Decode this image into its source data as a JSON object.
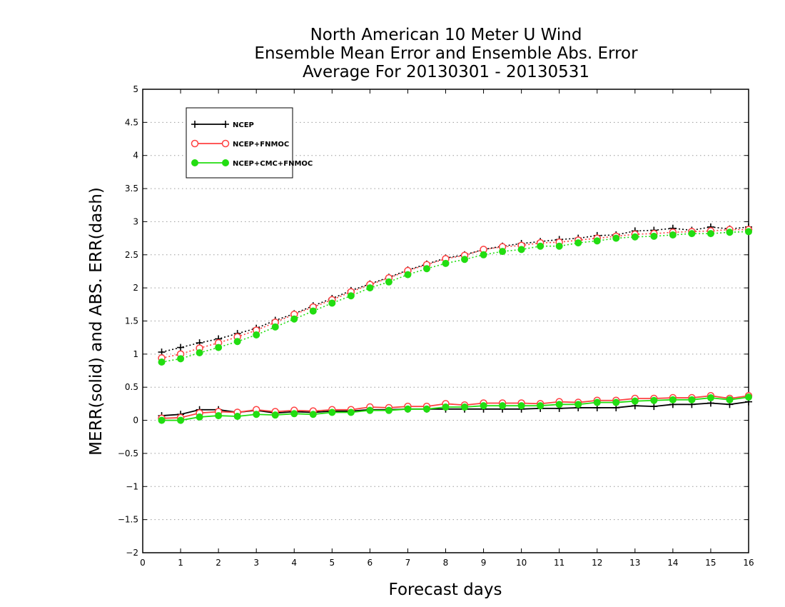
{
  "chart_data": {
    "type": "line",
    "title_lines": [
      "North American 10 Meter U Wind",
      "Ensemble Mean Error and Ensemble Abs. Error",
      "Average For 20130301 - 20130531"
    ],
    "xlabel": "Forecast days",
    "ylabel": "MERR(solid) and ABS. ERR(dash)",
    "xlim": [
      0,
      16
    ],
    "ylim": [
      -2,
      5
    ],
    "xticks": [
      0,
      1,
      2,
      3,
      4,
      5,
      6,
      7,
      8,
      9,
      10,
      11,
      12,
      13,
      14,
      15,
      16
    ],
    "yticks": [
      -2,
      -1.5,
      -1,
      -0.5,
      0,
      0.5,
      1,
      1.5,
      2,
      2.5,
      3,
      3.5,
      4,
      4.5,
      5
    ],
    "grid": "horizontal dotted",
    "legend_placement": "top-left",
    "x": [
      0.5,
      1,
      1.5,
      2,
      2.5,
      3,
      3.5,
      4,
      4.5,
      5,
      5.5,
      6,
      6.5,
      7,
      7.5,
      8,
      8.5,
      9,
      9.5,
      10,
      10.5,
      11,
      11.5,
      12,
      12.5,
      13,
      13.5,
      14,
      14.5,
      15,
      15.5,
      16
    ],
    "series": [
      {
        "name": "NCEP",
        "color": "#000000",
        "marker": "plus",
        "merr": [
          0.07,
          0.09,
          0.16,
          0.16,
          0.12,
          0.15,
          0.11,
          0.13,
          0.12,
          0.14,
          0.14,
          0.16,
          0.16,
          0.17,
          0.17,
          0.17,
          0.17,
          0.17,
          0.17,
          0.17,
          0.18,
          0.18,
          0.19,
          0.19,
          0.19,
          0.22,
          0.21,
          0.24,
          0.24,
          0.26,
          0.24,
          0.28
        ],
        "abserr": [
          1.03,
          1.1,
          1.17,
          1.23,
          1.31,
          1.39,
          1.51,
          1.61,
          1.73,
          1.84,
          1.96,
          2.06,
          2.16,
          2.27,
          2.36,
          2.45,
          2.5,
          2.58,
          2.63,
          2.67,
          2.7,
          2.73,
          2.75,
          2.79,
          2.8,
          2.86,
          2.87,
          2.9,
          2.87,
          2.92,
          2.89,
          2.92
        ]
      },
      {
        "name": "NCEP+FNMOC",
        "color": "#ff4040",
        "marker": "open-circle",
        "merr": [
          0.03,
          0.04,
          0.11,
          0.13,
          0.12,
          0.16,
          0.13,
          0.15,
          0.14,
          0.16,
          0.16,
          0.2,
          0.19,
          0.21,
          0.21,
          0.25,
          0.23,
          0.26,
          0.26,
          0.26,
          0.25,
          0.28,
          0.27,
          0.3,
          0.3,
          0.33,
          0.33,
          0.34,
          0.34,
          0.37,
          0.33,
          0.37
        ],
        "abserr": [
          0.94,
          1.0,
          1.09,
          1.17,
          1.26,
          1.36,
          1.48,
          1.6,
          1.71,
          1.82,
          1.94,
          2.05,
          2.15,
          2.26,
          2.35,
          2.44,
          2.49,
          2.58,
          2.62,
          2.64,
          2.68,
          2.69,
          2.72,
          2.75,
          2.78,
          2.81,
          2.82,
          2.84,
          2.85,
          2.86,
          2.88,
          2.88
        ]
      },
      {
        "name": "NCEP+CMC+FNMOC",
        "color": "#22dd11",
        "marker": "filled-circle",
        "merr": [
          0.0,
          0.0,
          0.05,
          0.07,
          0.06,
          0.09,
          0.08,
          0.1,
          0.09,
          0.12,
          0.12,
          0.15,
          0.15,
          0.17,
          0.17,
          0.2,
          0.2,
          0.22,
          0.22,
          0.22,
          0.22,
          0.24,
          0.24,
          0.27,
          0.27,
          0.29,
          0.3,
          0.31,
          0.31,
          0.34,
          0.31,
          0.35
        ],
        "abserr": [
          0.88,
          0.93,
          1.02,
          1.1,
          1.19,
          1.29,
          1.41,
          1.53,
          1.65,
          1.77,
          1.88,
          2.0,
          2.09,
          2.2,
          2.29,
          2.37,
          2.43,
          2.5,
          2.55,
          2.58,
          2.63,
          2.63,
          2.68,
          2.71,
          2.75,
          2.77,
          2.78,
          2.8,
          2.82,
          2.82,
          2.84,
          2.85
        ]
      }
    ]
  }
}
